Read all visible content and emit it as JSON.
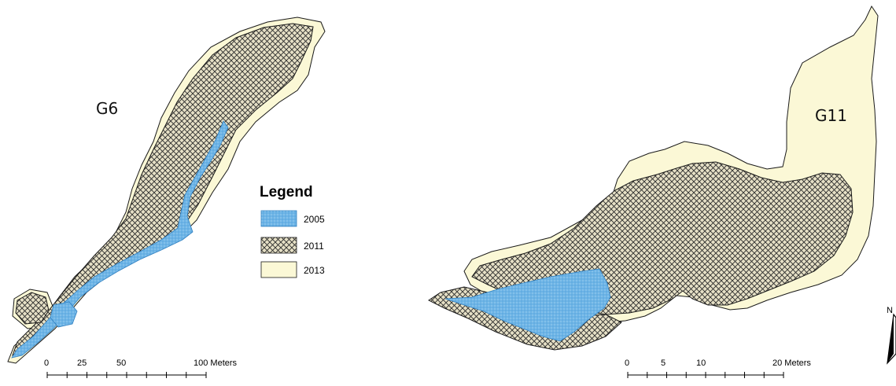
{
  "maps": [
    {
      "label": "G6"
    },
    {
      "label": "G11"
    }
  ],
  "legend": {
    "title": "Legend",
    "items": [
      {
        "year": "2005",
        "color": "#6db4e6",
        "fill": "stippled-blue"
      },
      {
        "year": "2011",
        "color": "#d8d2b8",
        "fill": "crosshatch"
      },
      {
        "year": "2013",
        "color": "#fbf8d6",
        "fill": "solid-cream"
      }
    ]
  },
  "scale_bars": [
    {
      "labels": [
        "0",
        "25",
        "50",
        "100 Meters"
      ]
    },
    {
      "labels": [
        "0",
        "5",
        "10",
        "20 Meters"
      ]
    }
  ],
  "north_arrow": {
    "label": "N",
    "icon": "north-arrow-icon"
  },
  "colors": {
    "water_2005": "#6db4e6",
    "hatch_2011": "#2b2b2b",
    "area_2013": "#fbf8d6"
  }
}
